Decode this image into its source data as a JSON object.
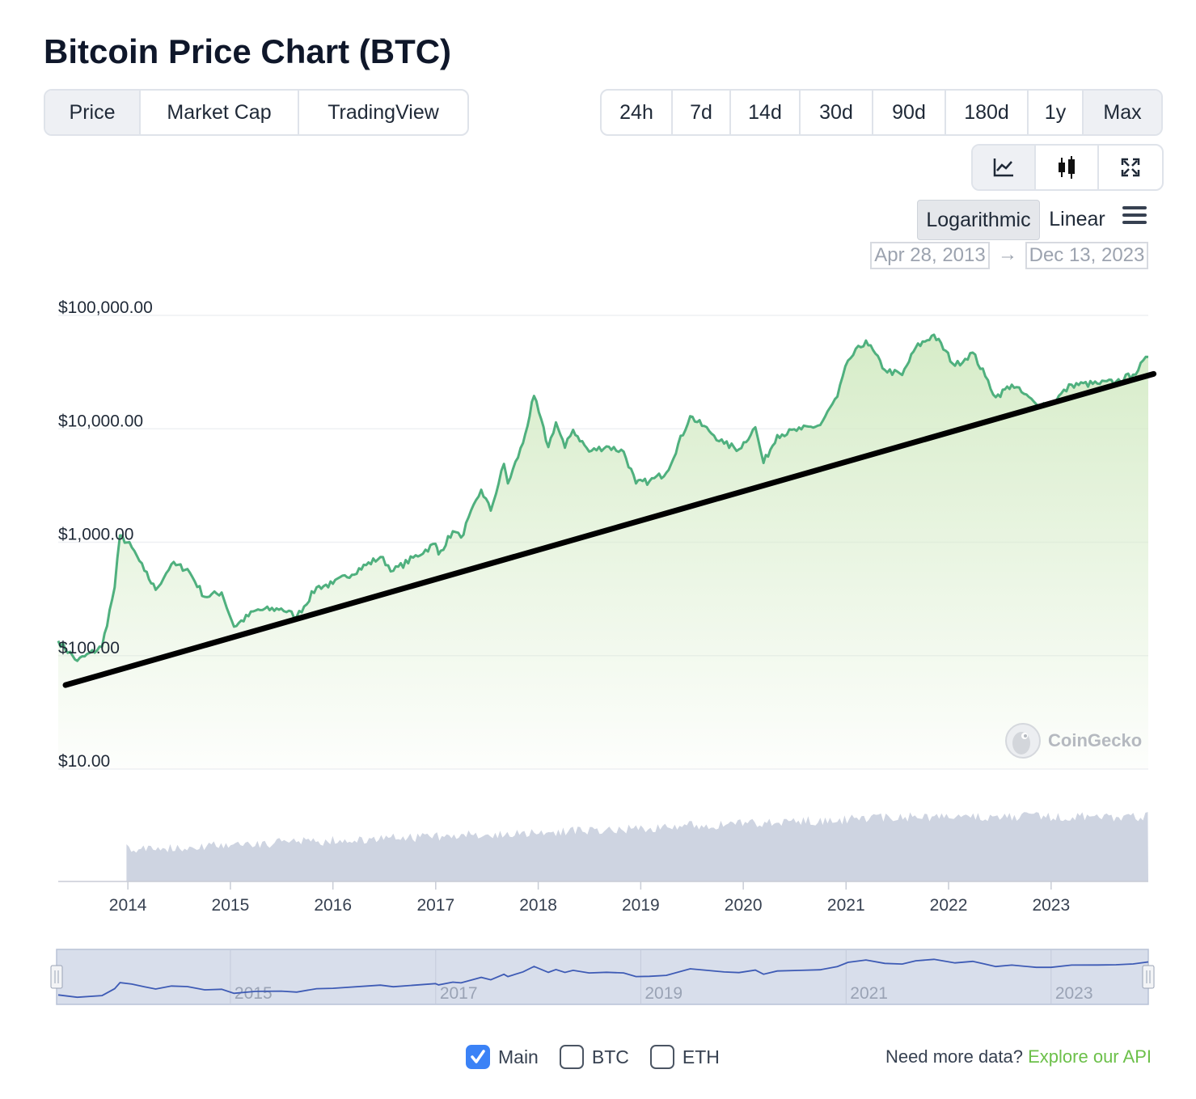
{
  "title": "Bitcoin Price Chart (BTC)",
  "tabs": [
    {
      "label": "Price",
      "active": true
    },
    {
      "label": "Market Cap",
      "active": false
    },
    {
      "label": "TradingView",
      "active": false
    }
  ],
  "ranges": [
    {
      "label": "24h",
      "active": false
    },
    {
      "label": "7d",
      "active": false
    },
    {
      "label": "14d",
      "active": false
    },
    {
      "label": "30d",
      "active": false
    },
    {
      "label": "90d",
      "active": false
    },
    {
      "label": "180d",
      "active": false
    },
    {
      "label": "1y",
      "active": false
    },
    {
      "label": "Max",
      "active": true
    }
  ],
  "view_icons": [
    "line-chart-icon",
    "candlestick-icon",
    "fullscreen-icon"
  ],
  "scale": {
    "log_label": "Logarithmic",
    "linear_label": "Linear",
    "selected": "Logarithmic"
  },
  "date_range": {
    "from": "Apr 28, 2013",
    "to": "Dec 13, 2023",
    "arrow": "→"
  },
  "watermark": "CoinGecko",
  "legend": [
    {
      "label": "Main",
      "checked": true
    },
    {
      "label": "BTC",
      "checked": false
    },
    {
      "label": "ETH",
      "checked": false
    }
  ],
  "footer": {
    "note": "Need more data?",
    "link": "Explore our API"
  },
  "colors": {
    "price_line": "#4fb07e",
    "area_fill": "#d6ecc8",
    "volume": "#ced4e1",
    "trend_line": "#000000",
    "navigator_bg": "#d8deeb",
    "navigator_line": "#3e5bb5",
    "link": "#6cc04a",
    "checkbox_on": "#3b82f6"
  },
  "chart_data": {
    "type": "line",
    "scale": "logarithmic",
    "ylim": [
      10,
      100000
    ],
    "xlim": [
      "2013-04-28",
      "2023-12-13"
    ],
    "y_tick_labels": [
      "$100,000.00",
      "$10,000.00",
      "$1,000.00",
      "$100.00",
      "$10.00"
    ],
    "y_tick_values": [
      100000,
      10000,
      1000,
      100,
      10
    ],
    "x_tick_labels": [
      "2014",
      "2015",
      "2016",
      "2017",
      "2018",
      "2019",
      "2020",
      "2021",
      "2022",
      "2023"
    ],
    "navigator_tick_labels": [
      "2015",
      "2017",
      "2019",
      "2021",
      "2023"
    ],
    "series": [
      {
        "name": "Price",
        "x": [
          "2013-04-28",
          "2013-07-05",
          "2013-10-01",
          "2013-11-15",
          "2013-12-04",
          "2014-01-15",
          "2014-03-01",
          "2014-04-10",
          "2014-06-05",
          "2014-08-01",
          "2014-10-01",
          "2014-12-01",
          "2015-01-14",
          "2015-04-01",
          "2015-07-01",
          "2015-08-25",
          "2015-11-04",
          "2016-01-01",
          "2016-06-18",
          "2016-08-03",
          "2016-12-31",
          "2017-01-11",
          "2017-03-03",
          "2017-04-01",
          "2017-06-12",
          "2017-07-16",
          "2017-09-01",
          "2017-09-15",
          "2017-11-08",
          "2017-12-17",
          "2018-02-06",
          "2018-03-05",
          "2018-04-06",
          "2018-05-05",
          "2018-07-01",
          "2018-09-01",
          "2018-11-01",
          "2018-12-15",
          "2019-02-01",
          "2019-04-02",
          "2019-06-26",
          "2019-09-01",
          "2019-10-25",
          "2019-12-17",
          "2020-02-13",
          "2020-03-13",
          "2020-05-01",
          "2020-07-26",
          "2020-10-01",
          "2020-12-01",
          "2021-01-08",
          "2021-03-13",
          "2021-05-19",
          "2021-07-20",
          "2021-09-06",
          "2021-11-10",
          "2022-01-24",
          "2022-03-28",
          "2022-05-12",
          "2022-06-18",
          "2022-08-14",
          "2022-11-09",
          "2023-01-01",
          "2023-03-15",
          "2023-06-15",
          "2023-08-20",
          "2023-10-20",
          "2023-12-13"
        ],
        "values": [
          135,
          90,
          120,
          400,
          1150,
          900,
          560,
          380,
          640,
          580,
          330,
          360,
          180,
          250,
          260,
          220,
          400,
          430,
          740,
          560,
          970,
          780,
          1250,
          1100,
          2900,
          1900,
          4900,
          3300,
          7500,
          19500,
          6900,
          11400,
          6800,
          9800,
          6300,
          7000,
          6300,
          3300,
          3450,
          4100,
          12900,
          9600,
          7400,
          6600,
          10300,
          5000,
          8800,
          9900,
          10800,
          19200,
          40000,
          60000,
          33000,
          29800,
          52000,
          67500,
          36000,
          47000,
          29000,
          19000,
          24500,
          16500,
          16600,
          24500,
          25000,
          26000,
          30000,
          43000
        ]
      }
    ],
    "trend_line": {
      "x": [
        "2013-05-24",
        "2024-01-01"
      ],
      "y": [
        55,
        30500
      ]
    },
    "volume": "shaded volume bars beneath the price panel (no axis values shown)"
  }
}
